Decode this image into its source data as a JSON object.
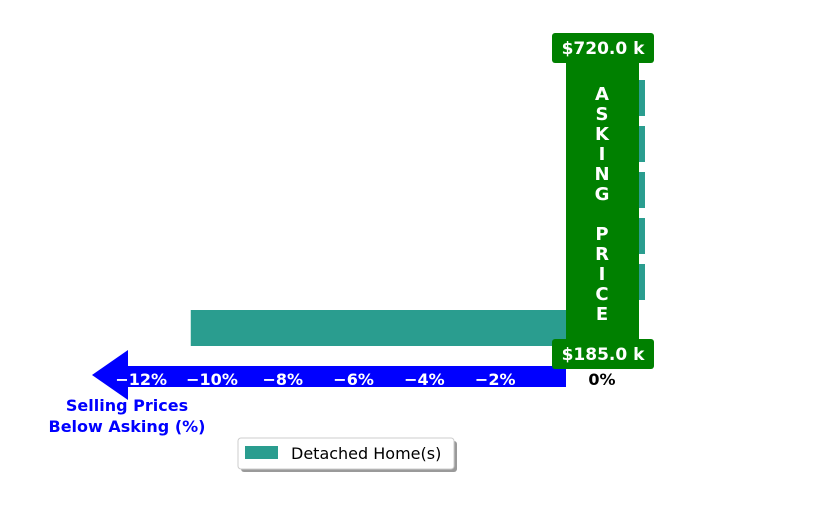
{
  "chart_data": {
    "type": "bar",
    "orientation": "horizontal",
    "xlim": [
      -13,
      0
    ],
    "x_ticks": [
      {
        "value": -12,
        "label": "−12%"
      },
      {
        "value": -10,
        "label": "−10%"
      },
      {
        "value": -8,
        "label": "−8%"
      },
      {
        "value": -6,
        "label": "−6%"
      },
      {
        "value": -4,
        "label": "−4%"
      },
      {
        "value": -2,
        "label": "−2%"
      }
    ],
    "zero_label": "0%",
    "xlabel_lines": [
      "Selling Prices",
      "Below Asking (%)"
    ],
    "series": [
      {
        "name": "Detached Home(s)",
        "color": "#2a9d8f",
        "values": [
          0.2,
          0.2,
          0.2,
          0.2,
          0.2,
          -10.6
        ]
      }
    ],
    "asking_price_label": "ASKING PRICE",
    "price_top": "$720.0 k",
    "price_bottom": "$185.0 k",
    "legend_placement": "bottom-center",
    "colors": {
      "bar": "#2a9d8f",
      "asking_band": "#008000",
      "arrow": "#0000ff",
      "caption": "#0000ff"
    }
  }
}
